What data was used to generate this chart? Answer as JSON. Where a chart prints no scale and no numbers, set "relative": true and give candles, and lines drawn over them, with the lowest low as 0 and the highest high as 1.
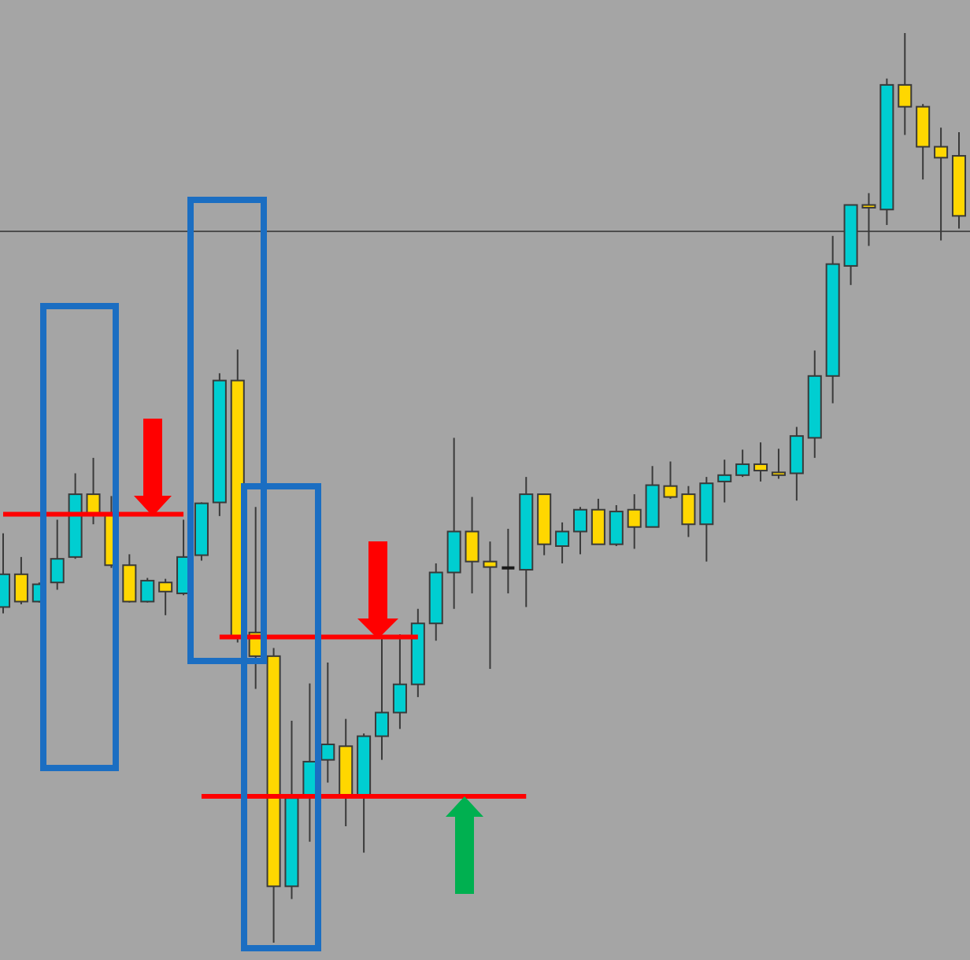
{
  "chart_data": {
    "type": "candlestick",
    "relative": true,
    "categories": [
      null,
      null,
      null,
      null,
      null,
      null,
      null,
      null,
      null,
      null,
      null,
      null,
      null,
      null,
      null,
      null,
      null,
      null,
      null,
      null,
      null,
      null,
      null,
      null,
      null,
      null,
      null,
      null,
      null,
      null,
      null,
      null,
      null,
      null,
      null,
      null,
      null,
      null,
      null,
      null,
      null,
      null,
      null,
      null,
      null,
      null,
      null,
      null,
      null,
      null,
      null,
      null,
      null,
      null
    ],
    "ohlc": [
      [
        0.369,
        0.45,
        0.362,
        0.405
      ],
      [
        0.405,
        0.424,
        0.372,
        0.375
      ],
      [
        0.375,
        0.396,
        0.374,
        0.394
      ],
      [
        0.396,
        0.465,
        0.388,
        0.422
      ],
      [
        0.424,
        0.516,
        0.422,
        0.493
      ],
      [
        0.493,
        0.533,
        0.46,
        0.471
      ],
      [
        0.472,
        0.491,
        0.412,
        0.415
      ],
      [
        0.415,
        0.427,
        0.374,
        0.375
      ],
      [
        0.375,
        0.401,
        0.374,
        0.398
      ],
      [
        0.396,
        0.4,
        0.36,
        0.386
      ],
      [
        0.384,
        0.465,
        0.382,
        0.424
      ],
      [
        0.426,
        0.484,
        0.42,
        0.483
      ],
      [
        0.484,
        0.626,
        0.469,
        0.618
      ],
      [
        0.618,
        0.652,
        0.33,
        0.336
      ],
      [
        0.341,
        0.479,
        0.279,
        0.315
      ],
      [
        0.315,
        0.324,
        0,
        0.062
      ],
      [
        0.062,
        0.244,
        0.048,
        0.159
      ],
      [
        0.161,
        0.285,
        0.111,
        0.199
      ],
      [
        0.201,
        0.308,
        0.176,
        0.218
      ],
      [
        0.216,
        0.246,
        0.128,
        0.161
      ],
      [
        0.161,
        0.23,
        0.099,
        0.227
      ],
      [
        0.227,
        0.337,
        0.201,
        0.253
      ],
      [
        0.253,
        0.339,
        0.235,
        0.284
      ],
      [
        0.284,
        0.367,
        0.27,
        0.351
      ],
      [
        0.351,
        0.417,
        0.332,
        0.407
      ],
      [
        0.407,
        0.555,
        0.367,
        0.452
      ],
      [
        0.452,
        0.49,
        0.384,
        0.419
      ],
      [
        0.419,
        0.441,
        0.301,
        0.413
      ],
      [
        0.412,
        0.455,
        0.384,
        0.412
      ],
      [
        0.41,
        0.512,
        0.369,
        0.493
      ],
      [
        0.493,
        0.493,
        0.426,
        0.438
      ],
      [
        0.436,
        0.462,
        0.417,
        0.452
      ],
      [
        0.452,
        0.479,
        0.427,
        0.476
      ],
      [
        0.476,
        0.488,
        0.438,
        0.438
      ],
      [
        0.438,
        0.481,
        0.436,
        0.474
      ],
      [
        0.476,
        0.493,
        0.433,
        0.457
      ],
      [
        0.457,
        0.524,
        0.457,
        0.503
      ],
      [
        0.502,
        0.529,
        0.488,
        0.49
      ],
      [
        0.493,
        0.502,
        0.446,
        0.46
      ],
      [
        0.46,
        0.512,
        0.419,
        0.505
      ],
      [
        0.507,
        0.531,
        0.484,
        0.514
      ],
      [
        0.514,
        0.542,
        0.512,
        0.526
      ],
      [
        0.526,
        0.55,
        0.507,
        0.519
      ],
      [
        0.517,
        0.543,
        0.51,
        0.514
      ],
      [
        0.516,
        0.567,
        0.486,
        0.557
      ],
      [
        0.555,
        0.651,
        0.533,
        0.623
      ],
      [
        0.623,
        0.777,
        0.593,
        0.746
      ],
      [
        0.744,
        0.811,
        0.723,
        0.811
      ],
      [
        0.811,
        0.824,
        0.766,
        0.808
      ],
      [
        0.806,
        0.95,
        0.789,
        0.943
      ],
      [
        0.943,
        1,
        0.888,
        0.919
      ],
      [
        0.919,
        0.922,
        0.839,
        0.875
      ],
      [
        0.875,
        0.896,
        0.772,
        0.863
      ],
      [
        0.865,
        0.891,
        0.785,
        0.799
      ]
    ],
    "colors": [
      "#00ced1",
      "#ffd700",
      "#00ced1",
      "#00ced1",
      "#00ced1",
      "#ffd700",
      "#ffd700",
      "#ffd700",
      "#00ced1",
      "#ffd700",
      "#00ced1",
      "#00ced1",
      "#00ced1",
      "#ffd700",
      "#ffd700",
      "#ffd700",
      "#00ced1",
      "#00ced1",
      "#00ced1",
      "#ffd700",
      "#00ced1",
      "#00ced1",
      "#00ced1",
      "#00ced1",
      "#00ced1",
      "#00ced1",
      "#ffd700",
      "#ffd700",
      "#1a1a1a",
      "#00ced1",
      "#ffd700",
      "#00ced1",
      "#00ced1",
      "#ffd700",
      "#00ced1",
      "#ffd700",
      "#00ced1",
      "#ffd700",
      "#ffd700",
      "#00ced1",
      "#00ced1",
      "#00ced1",
      "#ffd700",
      "#ffd700",
      "#00ced1",
      "#00ced1",
      "#00ced1",
      "#00ced1",
      "#ffd700",
      "#00ced1",
      "#ffd700",
      "#ffd700",
      "#ffd700",
      "#ffd700"
    ],
    "series": [
      {
        "type": "line",
        "color": "#ff0000",
        "values": [
          0.471,
          0.471,
          0.471,
          0.471,
          0.471,
          0.471,
          0.471,
          0.471,
          0.471,
          0.471,
          0.471,
          null,
          null,
          null,
          null,
          null,
          null,
          null,
          null,
          null,
          null,
          null,
          null,
          null,
          null,
          null,
          null,
          null,
          null,
          null,
          null,
          null,
          null,
          null,
          null,
          null,
          null,
          null,
          null,
          null,
          null,
          null,
          null,
          null,
          null,
          null,
          null,
          null,
          null,
          null,
          null,
          null,
          null,
          null
        ]
      },
      {
        "type": "line",
        "color": "#ff0000",
        "values": [
          null,
          null,
          null,
          null,
          null,
          null,
          null,
          null,
          null,
          null,
          null,
          null,
          0.336,
          0.336,
          0.336,
          0.336,
          0.336,
          0.336,
          0.336,
          0.336,
          0.336,
          0.336,
          0.336,
          0.336,
          null,
          null,
          null,
          null,
          null,
          null,
          null,
          null,
          null,
          null,
          null,
          null,
          null,
          null,
          null,
          null,
          null,
          null,
          null,
          null,
          null,
          null,
          null,
          null,
          null,
          null,
          null,
          null,
          null,
          null
        ]
      },
      {
        "type": "line",
        "color": "#ff0000",
        "values": [
          null,
          null,
          null,
          null,
          null,
          null,
          null,
          null,
          null,
          null,
          null,
          0.161,
          0.161,
          0.161,
          0.161,
          0.161,
          0.161,
          0.161,
          0.161,
          0.161,
          0.161,
          0.161,
          0.161,
          0.161,
          0.161,
          0.161,
          0.161,
          0.161,
          0.161,
          0.161,
          null,
          null,
          null,
          null,
          null,
          null,
          null,
          null,
          null,
          null,
          null,
          null,
          null,
          null,
          null,
          null,
          null,
          null,
          null,
          null,
          null,
          null,
          null,
          null
        ]
      }
    ],
    "ref_lines": [
      {
        "axis": "y",
        "value": 0.782,
        "color": "#4d4d4d"
      }
    ]
  }
}
